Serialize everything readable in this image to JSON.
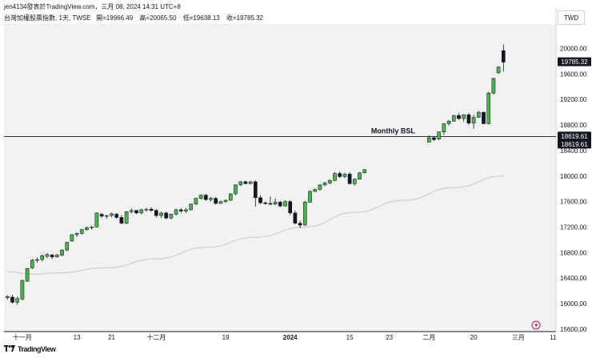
{
  "header": {
    "line1": "jen4134發表於TradingView.com，三月 08, 2024 14:31 UTC+8",
    "title": "台灣加權股票指數, 1天, TWSE",
    "open_label": "開=",
    "open": "19966.49",
    "high_label": "高=",
    "high": "20065.50",
    "low_label": "低=",
    "low": "19638.13",
    "close_label": "收=",
    "close": "19785.32"
  },
  "currency": "TWD",
  "brand": "TradingView",
  "colors": {
    "up": "#4caf50",
    "down": "#131722",
    "ma": "#c8c8c8",
    "plot_bg": "#f2f2f2",
    "level_line": "#131722"
  },
  "chart_data": {
    "type": "candlestick",
    "title": "台灣加權股票指數, 1天, TWSE",
    "y_range": [
      15500,
      20400
    ],
    "y_ticks": [
      15600,
      16000,
      16400,
      16800,
      17200,
      17600,
      18000,
      18400,
      18800,
      19200,
      19600,
      20000
    ],
    "x_range": [
      0,
      111
    ],
    "x_ticks": [
      {
        "label": "十一月",
        "i": 3
      },
      {
        "label": "13",
        "i": 14
      },
      {
        "label": "21",
        "i": 21
      },
      {
        "label": "十二月",
        "i": 30
      },
      {
        "label": "19",
        "i": 44
      },
      {
        "label": "2024",
        "i": 57
      },
      {
        "label": "15",
        "i": 69
      },
      {
        "label": "23",
        "i": 77
      },
      {
        "label": "二月",
        "i": 85
      },
      {
        "label": "20",
        "i": 94
      },
      {
        "label": "三月",
        "i": 103
      },
      {
        "label": "11",
        "i": 110
      }
    ],
    "candles": [
      [
        16090,
        16130,
        16060,
        16110
      ],
      [
        16100,
        16140,
        16000,
        16020
      ],
      [
        16020,
        16110,
        15980,
        16080
      ],
      [
        16070,
        16380,
        16050,
        16360
      ],
      [
        16350,
        16560,
        16340,
        16550
      ],
      [
        16560,
        16700,
        16540,
        16680
      ],
      [
        16680,
        16720,
        16640,
        16690
      ],
      [
        16690,
        16770,
        16660,
        16750
      ],
      [
        16740,
        16790,
        16710,
        16770
      ],
      [
        16760,
        16780,
        16700,
        16730
      ],
      [
        16730,
        16780,
        16720,
        16760
      ],
      [
        16760,
        16850,
        16740,
        16840
      ],
      [
        16840,
        16970,
        16820,
        16960
      ],
      [
        16980,
        17090,
        16970,
        17080
      ],
      [
        17080,
        17120,
        17040,
        17100
      ],
      [
        17100,
        17170,
        17080,
        17160
      ],
      [
        17160,
        17210,
        17140,
        17190
      ],
      [
        17190,
        17220,
        17160,
        17200
      ],
      [
        17200,
        17430,
        17190,
        17420
      ],
      [
        17400,
        17420,
        17340,
        17370
      ],
      [
        17370,
        17390,
        17330,
        17380
      ],
      [
        17380,
        17420,
        17350,
        17410
      ],
      [
        17400,
        17420,
        17330,
        17350
      ],
      [
        17350,
        17390,
        17240,
        17260
      ],
      [
        17260,
        17450,
        17240,
        17440
      ],
      [
        17440,
        17490,
        17410,
        17460
      ],
      [
        17460,
        17470,
        17400,
        17420
      ],
      [
        17420,
        17490,
        17400,
        17470
      ],
      [
        17470,
        17500,
        17440,
        17480
      ],
      [
        17480,
        17510,
        17440,
        17460
      ],
      [
        17460,
        17480,
        17350,
        17380
      ],
      [
        17380,
        17440,
        17340,
        17420
      ],
      [
        17420,
        17440,
        17320,
        17340
      ],
      [
        17340,
        17410,
        17320,
        17400
      ],
      [
        17400,
        17490,
        17380,
        17470
      ],
      [
        17470,
        17500,
        17420,
        17450
      ],
      [
        17450,
        17500,
        17420,
        17470
      ],
      [
        17470,
        17570,
        17460,
        17560
      ],
      [
        17560,
        17660,
        17540,
        17650
      ],
      [
        17650,
        17710,
        17630,
        17700
      ],
      [
        17700,
        17720,
        17610,
        17630
      ],
      [
        17630,
        17670,
        17600,
        17650
      ],
      [
        17650,
        17670,
        17550,
        17570
      ],
      [
        17570,
        17610,
        17560,
        17600
      ],
      [
        17600,
        17630,
        17580,
        17620
      ],
      [
        17620,
        17730,
        17610,
        17720
      ],
      [
        17720,
        17870,
        17700,
        17860
      ],
      [
        17860,
        17920,
        17840,
        17910
      ],
      [
        17910,
        17930,
        17870,
        17880
      ],
      [
        17880,
        17920,
        17870,
        17910
      ],
      [
        17910,
        17930,
        17520,
        17660
      ],
      [
        17660,
        17700,
        17560,
        17580
      ],
      [
        17580,
        17600,
        17550,
        17570
      ],
      [
        17570,
        17680,
        17540,
        17560
      ],
      [
        17560,
        17650,
        17540,
        17590
      ],
      [
        17590,
        17610,
        17510,
        17530
      ],
      [
        17530,
        17620,
        17520,
        17600
      ],
      [
        17600,
        17620,
        17390,
        17420
      ],
      [
        17420,
        17460,
        17240,
        17260
      ],
      [
        17260,
        17300,
        17180,
        17230
      ],
      [
        17230,
        17610,
        17220,
        17590
      ],
      [
        17590,
        17770,
        17580,
        17760
      ],
      [
        17760,
        17800,
        17740,
        17790
      ],
      [
        17790,
        17870,
        17770,
        17860
      ],
      [
        17860,
        17910,
        17840,
        17890
      ],
      [
        17890,
        17950,
        17870,
        17930
      ],
      [
        17930,
        18060,
        17920,
        18040
      ],
      [
        18040,
        18070,
        17970,
        17990
      ],
      [
        17990,
        18050,
        17970,
        18030
      ],
      [
        18030,
        18060,
        17870,
        17880
      ],
      [
        17880,
        17960,
        17850,
        17950
      ],
      [
        17950,
        18060,
        17940,
        18050
      ],
      [
        18050,
        18110,
        18040,
        18100
      ],
      [
        18530,
        18640,
        18550,
        18600
      ],
      [
        18600,
        18620,
        18550,
        18570
      ],
      [
        18580,
        18700,
        18560,
        18690
      ],
      [
        18690,
        18830,
        18640,
        18820
      ],
      [
        18820,
        18880,
        18790,
        18860
      ],
      [
        18860,
        18960,
        18850,
        18950
      ],
      [
        18950,
        18990,
        18880,
        18900
      ],
      [
        18900,
        18970,
        18850,
        18960
      ],
      [
        18960,
        18990,
        18800,
        18830
      ],
      [
        18830,
        18960,
        18740,
        18920
      ],
      [
        18920,
        19020,
        18910,
        19000
      ],
      [
        19000,
        19010,
        18810,
        18820
      ],
      [
        18820,
        19320,
        18810,
        19300
      ],
      [
        19300,
        19540,
        19280,
        19530
      ],
      [
        19620,
        19720,
        19600,
        19710
      ],
      [
        19966,
        20065,
        19638,
        19785
      ]
    ],
    "candle_slots": [
      0,
      1,
      2,
      3,
      4,
      5,
      6,
      7,
      8,
      9,
      10,
      11,
      12,
      13,
      14,
      15,
      16,
      17,
      18,
      19,
      20,
      21,
      22,
      23,
      24,
      25,
      26,
      27,
      28,
      29,
      30,
      31,
      32,
      33,
      34,
      35,
      36,
      37,
      38,
      39,
      40,
      41,
      42,
      43,
      44,
      45,
      46,
      47,
      48,
      49,
      50,
      51,
      52,
      53,
      54,
      55,
      56,
      57,
      58,
      59,
      60,
      61,
      62,
      63,
      64,
      65,
      66,
      67,
      68,
      69,
      70,
      71,
      72,
      85,
      86,
      87,
      88,
      89,
      90,
      91,
      92,
      93,
      94,
      95,
      96,
      97,
      98,
      99,
      100
    ],
    "moving_average": {
      "slots": [
        0,
        5,
        10,
        20,
        30,
        40,
        50,
        60,
        70,
        80,
        90,
        100
      ],
      "values": [
        16500,
        16460,
        16480,
        16560,
        16700,
        16880,
        17040,
        17200,
        17430,
        17620,
        17820,
        18000
      ]
    },
    "level": {
      "label": "Monthly BSL",
      "value": 18619.61,
      "start_slot": 0,
      "end_slot": 83
    },
    "price_labels": [
      {
        "value": 19785.32,
        "text": "19785.32",
        "style": "last"
      },
      {
        "value": 18619.61,
        "text": "18619.61",
        "style": "level"
      },
      {
        "value": 18619.61,
        "text": "18619.61",
        "style": "level-offset"
      }
    ]
  }
}
